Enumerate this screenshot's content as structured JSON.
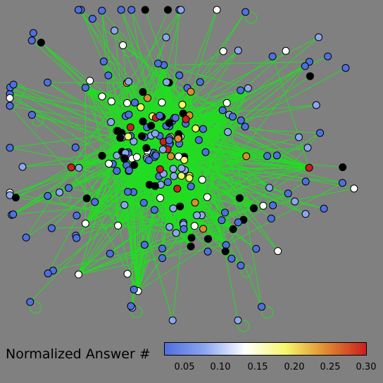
{
  "legend": {
    "title": "Normalized Answer #",
    "ticks": [
      "0.05",
      "0.10",
      "0.15",
      "0.20",
      "0.25",
      "0.30"
    ],
    "range": [
      0.03,
      0.3
    ],
    "colors": [
      "#4f6fe0",
      "#8da6f0",
      "#ffffff",
      "#f6f66a",
      "#e08a30",
      "#cc1f1f"
    ]
  },
  "graph": {
    "node_count": 260,
    "edge_color": "#22dd22",
    "outlier_color": "#000000",
    "background": "#808080"
  }
}
